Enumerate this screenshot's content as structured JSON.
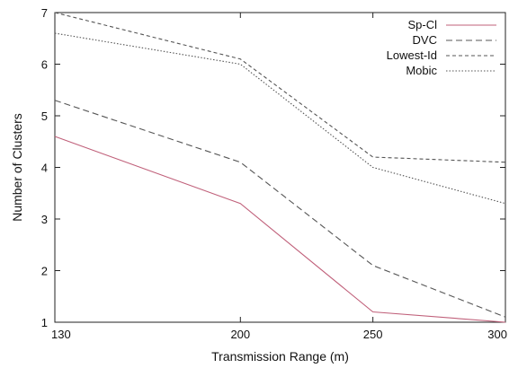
{
  "chart_data": {
    "type": "line",
    "title": "",
    "xlabel": "Transmission Range (m)",
    "ylabel": "Number of Clusters",
    "x": [
      130,
      200,
      250,
      300
    ],
    "xlim": [
      130,
      300
    ],
    "ylim": [
      1,
      7
    ],
    "xticks": [
      130,
      200,
      250,
      300
    ],
    "yticks": [
      1,
      2,
      3,
      4,
      5,
      6,
      7
    ],
    "grid": false,
    "legend_position": "top-right",
    "series": [
      {
        "name": "Sp-Cl",
        "values": [
          4.6,
          3.3,
          1.2,
          1.0
        ],
        "color": "#c0607a",
        "dash": "solid"
      },
      {
        "name": "DVC",
        "values": [
          5.3,
          4.1,
          2.1,
          1.1
        ],
        "color": "#555555",
        "dash": "long-dash"
      },
      {
        "name": "Lowest-Id",
        "values": [
          7.0,
          6.1,
          4.2,
          4.1
        ],
        "color": "#555555",
        "dash": "short-dash"
      },
      {
        "name": "Mobic",
        "values": [
          6.6,
          6.0,
          4.0,
          3.3
        ],
        "color": "#555555",
        "dash": "dotted"
      }
    ]
  }
}
